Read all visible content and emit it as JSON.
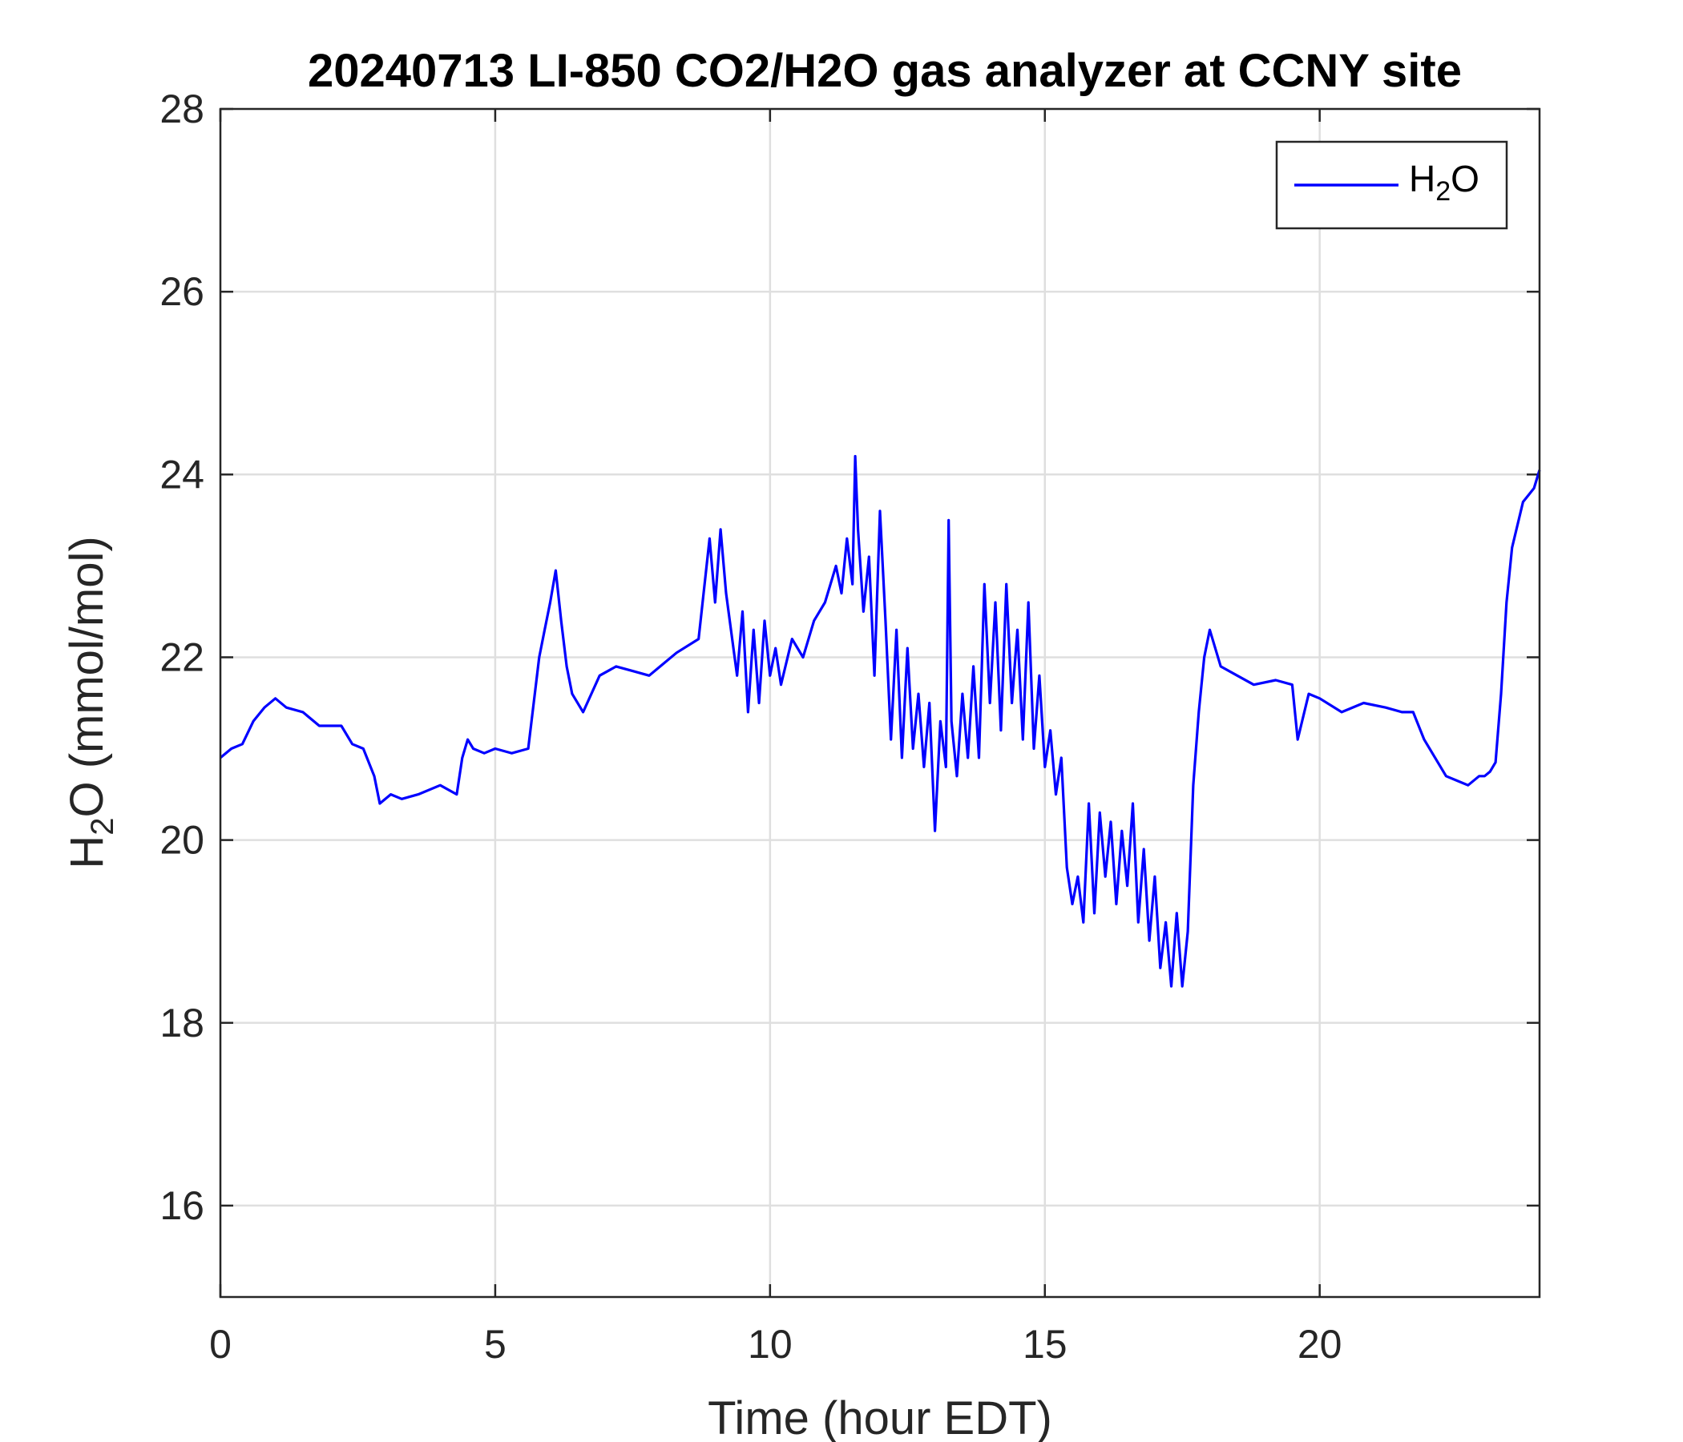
{
  "chart_data": {
    "type": "line",
    "title": "20240713 LI-850 CO2/H2O gas analyzer at CCNY site",
    "xlabel": "Time (hour EDT)",
    "ylabel": {
      "pre": "H",
      "sub": "2",
      "post": "O (mmol/mol)"
    },
    "xlim": [
      0,
      24
    ],
    "ylim": [
      15,
      28
    ],
    "xticks": [
      0,
      5,
      10,
      15,
      20
    ],
    "yticks": [
      16,
      18,
      20,
      22,
      24,
      26,
      28
    ],
    "grid": true,
    "legend_position": "top-right",
    "series": [
      {
        "name": {
          "pre": "H",
          "sub": "2",
          "post": "O"
        },
        "color": "#0000ff",
        "x": [
          0,
          0.2,
          0.4,
          0.6,
          0.8,
          1.0,
          1.2,
          1.5,
          1.8,
          2.2,
          2.4,
          2.6,
          2.8,
          2.9,
          3.1,
          3.3,
          3.6,
          4.0,
          4.3,
          4.4,
          4.5,
          4.6,
          4.8,
          5.0,
          5.3,
          5.6,
          5.8,
          5.9,
          6.0,
          6.1,
          6.2,
          6.3,
          6.4,
          6.6,
          6.9,
          7.2,
          7.5,
          7.8,
          8.0,
          8.3,
          8.7,
          8.9,
          9.0,
          9.1,
          9.2,
          9.4,
          9.5,
          9.6,
          9.7,
          9.8,
          9.9,
          10.0,
          10.1,
          10.2,
          10.4,
          10.6,
          10.8,
          11.0,
          11.2,
          11.3,
          11.4,
          11.5,
          11.55,
          11.6,
          11.7,
          11.8,
          11.9,
          12.0,
          12.1,
          12.2,
          12.3,
          12.4,
          12.5,
          12.6,
          12.7,
          12.8,
          12.9,
          13.0,
          13.1,
          13.2,
          13.25,
          13.3,
          13.4,
          13.5,
          13.6,
          13.7,
          13.8,
          13.9,
          14.0,
          14.1,
          14.2,
          14.3,
          14.4,
          14.5,
          14.6,
          14.7,
          14.8,
          14.9,
          15.0,
          15.1,
          15.2,
          15.3,
          15.4,
          15.5,
          15.6,
          15.7,
          15.8,
          15.9,
          16.0,
          16.1,
          16.2,
          16.3,
          16.4,
          16.5,
          16.6,
          16.7,
          16.8,
          16.9,
          17.0,
          17.1,
          17.2,
          17.3,
          17.4,
          17.5,
          17.6,
          17.7,
          17.8,
          17.9,
          18.0,
          18.2,
          18.5,
          18.8,
          19.2,
          19.5,
          19.6,
          19.8,
          20.0,
          20.4,
          20.8,
          21.2,
          21.5,
          21.7,
          21.9,
          22.1,
          22.3,
          22.5,
          22.7,
          22.9,
          23.0,
          23.1,
          23.2,
          23.3,
          23.4,
          23.5,
          23.7,
          23.9,
          24.0
        ],
        "y": [
          20.9,
          21.0,
          21.05,
          21.3,
          21.45,
          21.55,
          21.45,
          21.4,
          21.25,
          21.25,
          21.05,
          21.0,
          20.7,
          20.4,
          20.5,
          20.45,
          20.5,
          20.6,
          20.5,
          20.9,
          21.1,
          21.0,
          20.95,
          21.0,
          20.95,
          21.0,
          22.0,
          22.3,
          22.6,
          22.95,
          22.4,
          21.9,
          21.6,
          21.4,
          21.8,
          21.9,
          21.85,
          21.8,
          21.9,
          22.05,
          22.2,
          23.3,
          22.6,
          23.4,
          22.7,
          21.8,
          22.5,
          21.4,
          22.3,
          21.5,
          22.4,
          21.8,
          22.1,
          21.7,
          22.2,
          22.0,
          22.4,
          22.6,
          23.0,
          22.7,
          23.3,
          22.8,
          24.2,
          23.4,
          22.5,
          23.1,
          21.8,
          23.6,
          22.4,
          21.1,
          22.3,
          20.9,
          22.1,
          21.0,
          21.6,
          20.8,
          21.5,
          20.1,
          21.3,
          20.8,
          23.5,
          21.3,
          20.7,
          21.6,
          20.9,
          21.9,
          20.9,
          22.8,
          21.5,
          22.6,
          21.2,
          22.8,
          21.5,
          22.3,
          21.1,
          22.6,
          21.0,
          21.8,
          20.8,
          21.2,
          20.5,
          20.9,
          19.7,
          19.3,
          19.6,
          19.1,
          20.4,
          19.2,
          20.3,
          19.6,
          20.2,
          19.3,
          20.1,
          19.5,
          20.4,
          19.1,
          19.9,
          18.9,
          19.6,
          18.6,
          19.1,
          18.4,
          19.2,
          18.4,
          19.0,
          20.6,
          21.4,
          22.0,
          22.3,
          21.9,
          21.8,
          21.7,
          21.75,
          21.7,
          21.1,
          21.6,
          21.55,
          21.4,
          21.5,
          21.45,
          21.4,
          21.4,
          21.1,
          20.9,
          20.7,
          20.65,
          20.6,
          20.7,
          20.7,
          20.75,
          20.85,
          21.6,
          22.6,
          23.2,
          23.7,
          23.85,
          24.05
        ]
      }
    ]
  }
}
